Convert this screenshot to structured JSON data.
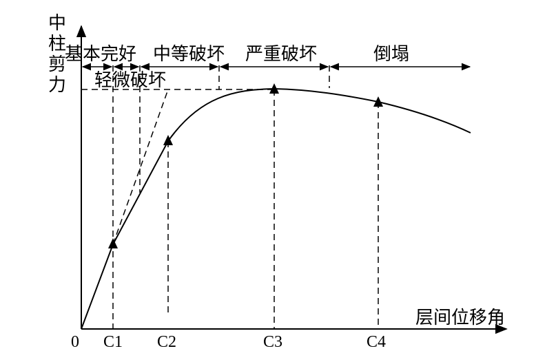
{
  "axes": {
    "y_label_chars": [
      "中",
      "柱",
      "剪",
      "力"
    ],
    "x_label": "层间位移角",
    "origin": "0"
  },
  "ticks": [
    "C1",
    "C2",
    "C3",
    "C4"
  ],
  "stages": {
    "intact": "基本完好",
    "slight": "轻微破坏",
    "moderate": "中等破坏",
    "severe": "严重破坏",
    "collapse": "倒塌"
  }
}
